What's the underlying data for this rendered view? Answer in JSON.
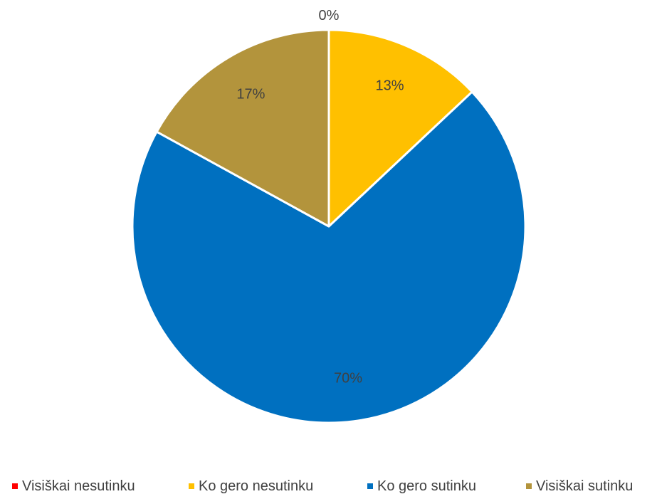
{
  "chart_data": {
    "type": "pie",
    "title": "",
    "categories": [
      "Visiškai nesutinku",
      "Ko gero nesutinku",
      "Ko gero sutinku",
      "Visiškai sutinku"
    ],
    "values": [
      0,
      13,
      70,
      17
    ],
    "labels": [
      "0%",
      "13%",
      "70%",
      "17%"
    ],
    "colors": [
      "#ff0000",
      "#ffc000",
      "#0070c0",
      "#b3943c"
    ],
    "start_angle_deg": 0,
    "direction": "clockwise",
    "legend_position": "bottom"
  }
}
